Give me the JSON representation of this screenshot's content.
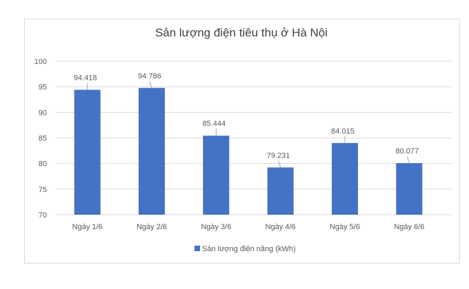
{
  "chart_data": {
    "type": "bar",
    "title": "Sản lượng điện tiêu thụ ở Hà Nội",
    "categories": [
      "Ngày 1/6",
      "Ngày 2/6",
      "Ngày 3/6",
      "Ngày 4/6",
      "Ngày 5/6",
      "Ngày 6/6"
    ],
    "series": [
      {
        "name": "Sản lượng điện năng (kWh)",
        "values": [
          94.418,
          94.786,
          85.444,
          79.231,
          84.015,
          80.077
        ]
      }
    ],
    "data_labels": [
      "94.418",
      "94.786",
      "85.444",
      "79.231",
      "84.015",
      "80.077"
    ],
    "ylim": [
      70,
      100
    ],
    "yticks": [
      70,
      75,
      80,
      85,
      90,
      95,
      100
    ],
    "grid": true,
    "legend_position": "bottom",
    "bar_color": "#4472c4"
  }
}
